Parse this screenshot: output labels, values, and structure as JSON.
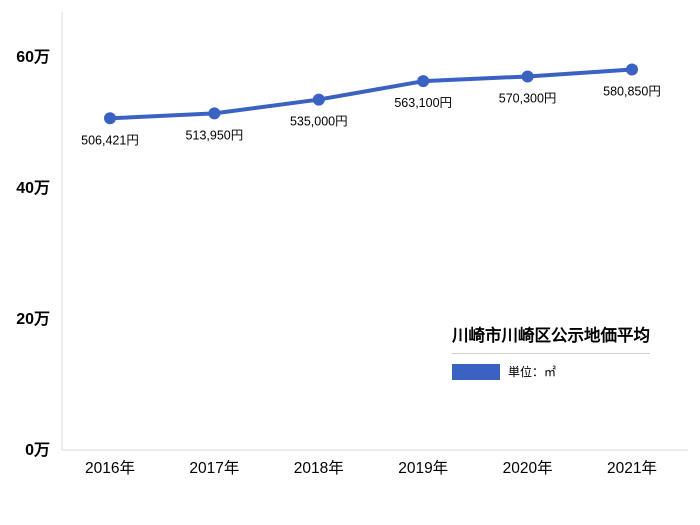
{
  "chart_data": {
    "type": "line",
    "title": "川崎市川崎区公示地価平均",
    "categories": [
      "2016年",
      "2017年",
      "2018年",
      "2019年",
      "2020年",
      "2021年"
    ],
    "series": [
      {
        "name": "川崎市川崎区公示地価平均",
        "values": [
          506421,
          513950,
          535000,
          563100,
          570300,
          580850
        ]
      }
    ],
    "value_labels": [
      "506,421円",
      "513,950円",
      "535,000円",
      "563,100円",
      "570,300円",
      "580,850円"
    ],
    "xlabel": "",
    "ylabel": "",
    "ylim": [
      0,
      600000
    ],
    "y_ticks": [
      {
        "value": 0,
        "label": "0万"
      },
      {
        "value": 200000,
        "label": "20万"
      },
      {
        "value": 400000,
        "label": "40万"
      },
      {
        "value": 600000,
        "label": "60万"
      }
    ],
    "grid": false,
    "legend": {
      "title": "川崎市川崎区公示地価平均",
      "unit": "単位：㎡",
      "position": "inside-bottom-right"
    },
    "colors": {
      "line": "#3A62C3",
      "marker": "#3A62C3",
      "axis": "#D8D8D8",
      "text": "#000000"
    }
  }
}
